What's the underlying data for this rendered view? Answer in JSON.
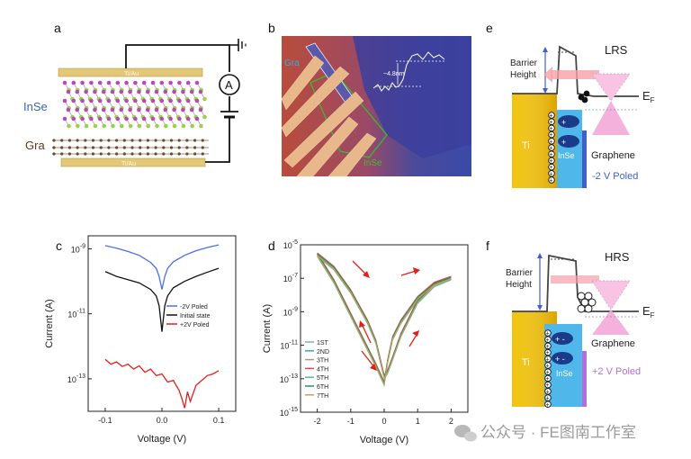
{
  "panels": {
    "a": {
      "letter": "a",
      "electrode_top": "Ti/Au",
      "electrode_bottom": "Ti/Au",
      "material_label": "InSe",
      "graphene_label": "Gra",
      "ammeter_label": "A"
    },
    "b": {
      "letter": "b",
      "gra_label": "Gra",
      "inse_label": "InSe",
      "thickness_label": "~4.8nm"
    },
    "c": {
      "letter": "c",
      "legend": [
        "-2V Poled",
        "Initial state",
        "+2V Poled"
      ]
    },
    "d": {
      "letter": "d",
      "legend": [
        "1ST",
        "2ND",
        "3TH",
        "4TH",
        "5TH",
        "6TH",
        "7TH"
      ]
    },
    "e": {
      "letter": "e",
      "state": "LRS",
      "barrier_label_1": "Barrier",
      "barrier_label_2": "Height",
      "ef_label": "E",
      "ef_sub": "F",
      "ti_label": "Ti",
      "inse_label": "InSe",
      "graphene_label": "Graphene",
      "poled_label": "-2 V Poled"
    },
    "f": {
      "letter": "f",
      "state": "HRS",
      "barrier_label_1": "Barrier",
      "barrier_label_2": "Height",
      "ef_label": "E",
      "ef_sub": "F",
      "ti_label": "Ti",
      "inse_label": "InSe",
      "graphene_label": "Graphene",
      "poled_label": "+2 V Poled"
    }
  },
  "watermark": "公众号 · FE图南工作室",
  "colors": {
    "blue_curve": "#4a6fe8",
    "black_curve": "#111111",
    "red_curve": "#e0201b",
    "ti_gold": "#f0c000",
    "inse_blue": "#4fb7ea",
    "graphene_pink": "#f2a8d8",
    "poled_blue": "#4060c8",
    "poled_purple": "#b070d8",
    "arrow_red": "#e0201b"
  },
  "chart_data": [
    {
      "type": "line",
      "panel": "c",
      "xlabel": "Voltage (V)",
      "ylabel": "Current (A)",
      "xlim": [
        -0.13,
        0.13
      ],
      "ylim_log10": [
        -14,
        -8.6
      ],
      "x_ticks": [
        -0.1,
        0.0,
        0.1
      ],
      "x_tick_labels": [
        "-0.1",
        "0.0",
        "0.1"
      ],
      "y_ticks_log10": [
        -13,
        -11,
        -9
      ],
      "y_tick_labels": [
        [
          "10",
          "-13"
        ],
        [
          "10",
          "-11"
        ],
        [
          "10",
          "-9"
        ]
      ],
      "series": [
        {
          "name": "-2V Poled",
          "color": "#4a6fe8",
          "x": [
            -0.1,
            -0.08,
            -0.06,
            -0.04,
            -0.02,
            -0.01,
            -0.005,
            0.0,
            0.005,
            0.01,
            0.02,
            0.04,
            0.06,
            0.08,
            0.1
          ],
          "log10_y": [
            -8.9,
            -8.98,
            -9.08,
            -9.2,
            -9.42,
            -9.6,
            -9.85,
            -10.25,
            -9.85,
            -9.6,
            -9.4,
            -9.2,
            -9.06,
            -8.96,
            -8.88
          ]
        },
        {
          "name": "Initial state",
          "color": "#111111",
          "x": [
            -0.1,
            -0.08,
            -0.06,
            -0.04,
            -0.02,
            -0.01,
            -0.005,
            0.0,
            0.005,
            0.01,
            0.02,
            0.04,
            0.06,
            0.08,
            0.1
          ],
          "log10_y": [
            -9.7,
            -9.85,
            -9.95,
            -10.05,
            -10.25,
            -10.45,
            -10.75,
            -11.55,
            -10.75,
            -10.45,
            -10.2,
            -10.0,
            -9.85,
            -9.72,
            -9.6
          ]
        },
        {
          "name": "+2V Poled",
          "color": "#e0201b",
          "x": [
            -0.1,
            -0.09,
            -0.08,
            -0.07,
            -0.06,
            -0.05,
            -0.04,
            -0.03,
            -0.02,
            -0.01,
            0.0,
            0.01,
            0.02,
            0.03,
            0.035,
            0.04,
            0.045,
            0.05,
            0.06,
            0.07,
            0.08,
            0.09,
            0.1
          ],
          "log10_y": [
            -12.4,
            -12.55,
            -12.48,
            -12.62,
            -12.55,
            -12.7,
            -12.6,
            -12.8,
            -12.7,
            -12.9,
            -12.85,
            -13.1,
            -13.05,
            -13.35,
            -13.6,
            -13.9,
            -13.4,
            -13.7,
            -13.2,
            -13.05,
            -12.9,
            -12.85,
            -12.75
          ]
        }
      ]
    },
    {
      "type": "line",
      "panel": "d",
      "xlabel": "Voltage (V)",
      "ylabel": "Current (A)",
      "xlim": [
        -2.5,
        2.5
      ],
      "ylim_log10": [
        -15,
        -5
      ],
      "x_ticks": [
        -2,
        -1,
        0,
        1,
        2
      ],
      "x_tick_labels": [
        "-2",
        "-1",
        "0",
        "1",
        "2"
      ],
      "y_ticks_log10": [
        -15,
        -13,
        -11,
        -9,
        -7,
        -5
      ],
      "y_tick_labels": [
        [
          "10",
          "-15"
        ],
        [
          "10",
          "-13"
        ],
        [
          "10",
          "-11"
        ],
        [
          "10",
          "-9"
        ],
        [
          "10",
          "-7"
        ],
        [
          "10",
          "-5"
        ]
      ],
      "sweep_x": [
        -2.0,
        -1.5,
        -1.0,
        -0.5,
        -0.25,
        0.0,
        0.1,
        0.25,
        0.5,
        1.0,
        1.5,
        2.0,
        1.5,
        1.0,
        0.5,
        0.25,
        0.1,
        0.0,
        -0.25,
        -0.5,
        -1.0,
        -1.5,
        -2.0
      ],
      "sweep_log10_y": [
        -5.6,
        -6.4,
        -7.8,
        -9.6,
        -10.8,
        -12.9,
        -12.6,
        -11.8,
        -10.4,
        -8.4,
        -7.4,
        -7.0,
        -7.35,
        -8.2,
        -9.6,
        -10.6,
        -12.0,
        -13.3,
        -12.2,
        -11.2,
        -9.2,
        -7.2,
        -5.6
      ],
      "series": [
        {
          "name": "1ST",
          "color": "#8aa9c8",
          "offset": 0.0
        },
        {
          "name": "2ND",
          "color": "#2aa8c8",
          "offset": 0.08
        },
        {
          "name": "3TH",
          "color": "#c88a8a",
          "offset": -0.06
        },
        {
          "name": "4TH",
          "color": "#d64a4a",
          "offset": 0.12
        },
        {
          "name": "5TH",
          "color": "#5fb88a",
          "offset": -0.1
        },
        {
          "name": "6TH",
          "color": "#2f8a5a",
          "offset": 0.05
        },
        {
          "name": "7TH",
          "color": "#c8a060",
          "offset": -0.03
        }
      ]
    }
  ]
}
